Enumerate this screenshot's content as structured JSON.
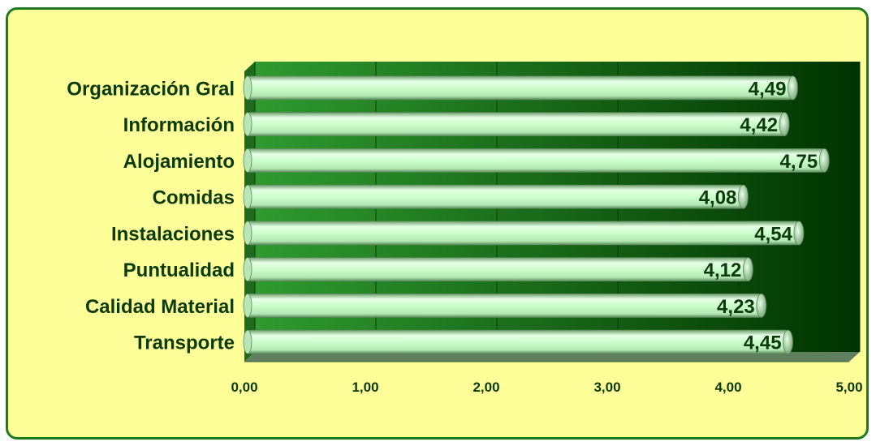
{
  "chart_data": {
    "type": "bar",
    "orientation": "horizontal",
    "categories": [
      "Organización Gral",
      "Información",
      "Alojamiento",
      "Comidas",
      "Instalaciones",
      "Puntualidad",
      "Calidad Material",
      "Transporte"
    ],
    "values": [
      4.49,
      4.42,
      4.75,
      4.08,
      4.54,
      4.12,
      4.23,
      4.45
    ],
    "value_labels": [
      "4,49",
      "4,42",
      "4,75",
      "4,08",
      "4,54",
      "4,12",
      "4,23",
      "4,45"
    ],
    "x_ticks": [
      0,
      1,
      2,
      3,
      4,
      5
    ],
    "x_tick_labels": [
      "0,00",
      "1,00",
      "2,00",
      "3,00",
      "4,00",
      "5,00"
    ],
    "xlim": [
      0,
      5
    ],
    "grid": true,
    "title": "",
    "xlabel": "",
    "ylabel": ""
  },
  "colors": {
    "page_background": "#ffff99",
    "frame_border": "#1f7a1f",
    "plot_dark": "#003300",
    "plot_light": "#2f9a2f",
    "bar_fill": "#ccffcc",
    "bar_edge": "#5a8a5a",
    "text": "#0b3a0b"
  }
}
